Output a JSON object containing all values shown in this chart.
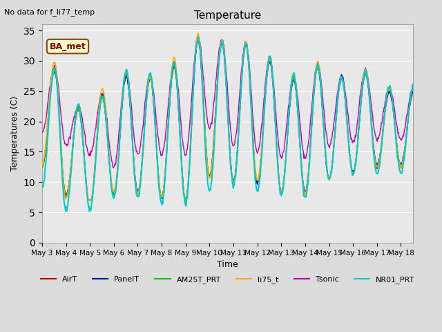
{
  "title": "Temperature",
  "xlabel": "Time",
  "ylabel": "Temperatures (C)",
  "annotation": "No data for f_li77_temp",
  "legend_label": "BA_met",
  "ylim": [
    0,
    36
  ],
  "yticks": [
    0,
    5,
    10,
    15,
    20,
    25,
    30,
    35
  ],
  "x_labels": [
    "May 3",
    "May 4",
    "May 5",
    "May 6",
    "May 7",
    "May 8",
    "May 9",
    "May 10",
    "May 11",
    "May 12",
    "May 13",
    "May 14",
    "May 15",
    "May 16",
    "May 17",
    "May 18"
  ],
  "n_days": 15.5,
  "series": {
    "AirT": {
      "color": "#CC0000",
      "lw": 1.0
    },
    "PanelT": {
      "color": "#0000CC",
      "lw": 1.0
    },
    "AM25T_PRT": {
      "color": "#00CC00",
      "lw": 1.0
    },
    "li75_t": {
      "color": "#FFAA00",
      "lw": 1.2
    },
    "Tsonic": {
      "color": "#BB00BB",
      "lw": 1.0
    },
    "NR01_PRT": {
      "color": "#00CCCC",
      "lw": 1.5
    }
  },
  "background_color": "#E8E8E8",
  "figure_facecolor": "#DCDCDC",
  "figsize": [
    6.4,
    4.8
  ],
  "dpi": 100
}
